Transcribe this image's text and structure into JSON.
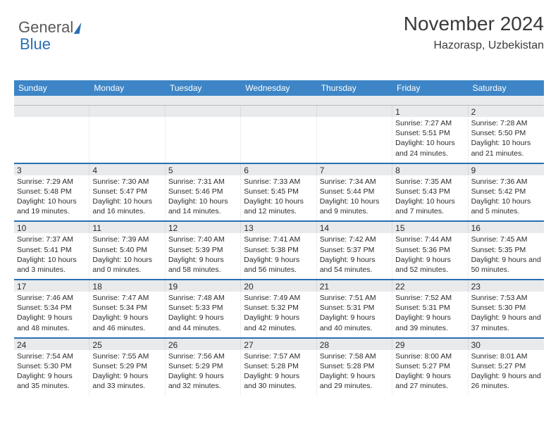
{
  "logo": {
    "part1": "General",
    "part2": "Blue"
  },
  "title": "November 2024",
  "location": "Hazorasp, Uzbekistan",
  "colors": {
    "header_bar": "#3d85c6",
    "accent": "#2a6fb3",
    "strip_bg": "#e8eaec",
    "text": "#2b2b2b"
  },
  "dow": [
    "Sunday",
    "Monday",
    "Tuesday",
    "Wednesday",
    "Thursday",
    "Friday",
    "Saturday"
  ],
  "first_weekday_index": 5,
  "days": [
    {
      "n": 1,
      "sunrise": "7:27 AM",
      "sunset": "5:51 PM",
      "daylight": "10 hours and 24 minutes."
    },
    {
      "n": 2,
      "sunrise": "7:28 AM",
      "sunset": "5:50 PM",
      "daylight": "10 hours and 21 minutes."
    },
    {
      "n": 3,
      "sunrise": "7:29 AM",
      "sunset": "5:48 PM",
      "daylight": "10 hours and 19 minutes."
    },
    {
      "n": 4,
      "sunrise": "7:30 AM",
      "sunset": "5:47 PM",
      "daylight": "10 hours and 16 minutes."
    },
    {
      "n": 5,
      "sunrise": "7:31 AM",
      "sunset": "5:46 PM",
      "daylight": "10 hours and 14 minutes."
    },
    {
      "n": 6,
      "sunrise": "7:33 AM",
      "sunset": "5:45 PM",
      "daylight": "10 hours and 12 minutes."
    },
    {
      "n": 7,
      "sunrise": "7:34 AM",
      "sunset": "5:44 PM",
      "daylight": "10 hours and 9 minutes."
    },
    {
      "n": 8,
      "sunrise": "7:35 AM",
      "sunset": "5:43 PM",
      "daylight": "10 hours and 7 minutes."
    },
    {
      "n": 9,
      "sunrise": "7:36 AM",
      "sunset": "5:42 PM",
      "daylight": "10 hours and 5 minutes."
    },
    {
      "n": 10,
      "sunrise": "7:37 AM",
      "sunset": "5:41 PM",
      "daylight": "10 hours and 3 minutes."
    },
    {
      "n": 11,
      "sunrise": "7:39 AM",
      "sunset": "5:40 PM",
      "daylight": "10 hours and 0 minutes."
    },
    {
      "n": 12,
      "sunrise": "7:40 AM",
      "sunset": "5:39 PM",
      "daylight": "9 hours and 58 minutes."
    },
    {
      "n": 13,
      "sunrise": "7:41 AM",
      "sunset": "5:38 PM",
      "daylight": "9 hours and 56 minutes."
    },
    {
      "n": 14,
      "sunrise": "7:42 AM",
      "sunset": "5:37 PM",
      "daylight": "9 hours and 54 minutes."
    },
    {
      "n": 15,
      "sunrise": "7:44 AM",
      "sunset": "5:36 PM",
      "daylight": "9 hours and 52 minutes."
    },
    {
      "n": 16,
      "sunrise": "7:45 AM",
      "sunset": "5:35 PM",
      "daylight": "9 hours and 50 minutes."
    },
    {
      "n": 17,
      "sunrise": "7:46 AM",
      "sunset": "5:34 PM",
      "daylight": "9 hours and 48 minutes."
    },
    {
      "n": 18,
      "sunrise": "7:47 AM",
      "sunset": "5:34 PM",
      "daylight": "9 hours and 46 minutes."
    },
    {
      "n": 19,
      "sunrise": "7:48 AM",
      "sunset": "5:33 PM",
      "daylight": "9 hours and 44 minutes."
    },
    {
      "n": 20,
      "sunrise": "7:49 AM",
      "sunset": "5:32 PM",
      "daylight": "9 hours and 42 minutes."
    },
    {
      "n": 21,
      "sunrise": "7:51 AM",
      "sunset": "5:31 PM",
      "daylight": "9 hours and 40 minutes."
    },
    {
      "n": 22,
      "sunrise": "7:52 AM",
      "sunset": "5:31 PM",
      "daylight": "9 hours and 39 minutes."
    },
    {
      "n": 23,
      "sunrise": "7:53 AM",
      "sunset": "5:30 PM",
      "daylight": "9 hours and 37 minutes."
    },
    {
      "n": 24,
      "sunrise": "7:54 AM",
      "sunset": "5:30 PM",
      "daylight": "9 hours and 35 minutes."
    },
    {
      "n": 25,
      "sunrise": "7:55 AM",
      "sunset": "5:29 PM",
      "daylight": "9 hours and 33 minutes."
    },
    {
      "n": 26,
      "sunrise": "7:56 AM",
      "sunset": "5:29 PM",
      "daylight": "9 hours and 32 minutes."
    },
    {
      "n": 27,
      "sunrise": "7:57 AM",
      "sunset": "5:28 PM",
      "daylight": "9 hours and 30 minutes."
    },
    {
      "n": 28,
      "sunrise": "7:58 AM",
      "sunset": "5:28 PM",
      "daylight": "9 hours and 29 minutes."
    },
    {
      "n": 29,
      "sunrise": "8:00 AM",
      "sunset": "5:27 PM",
      "daylight": "9 hours and 27 minutes."
    },
    {
      "n": 30,
      "sunrise": "8:01 AM",
      "sunset": "5:27 PM",
      "daylight": "9 hours and 26 minutes."
    }
  ],
  "labels": {
    "sunrise": "Sunrise:",
    "sunset": "Sunset:",
    "daylight": "Daylight:"
  }
}
